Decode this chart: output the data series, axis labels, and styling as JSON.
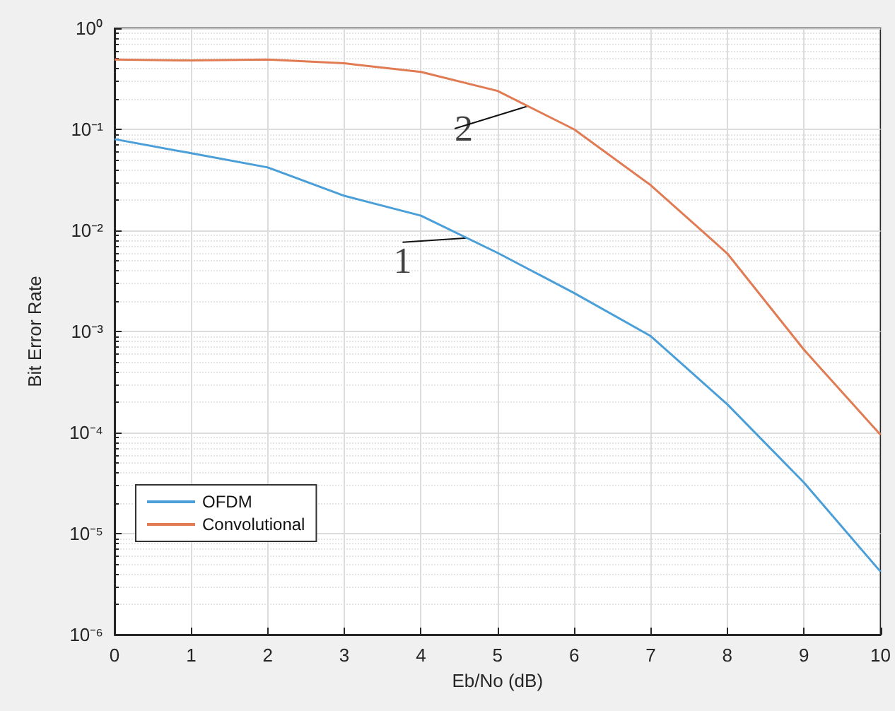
{
  "chart_data": {
    "type": "line",
    "xlabel": "Eb/No (dB)",
    "ylabel": "Bit Error Rate",
    "x": [
      0,
      1,
      2,
      3,
      4,
      5,
      6,
      7,
      8,
      9,
      10
    ],
    "series": [
      {
        "name": "OFDM",
        "color": "#4a9fd8",
        "values": [
          0.08,
          0.058,
          0.042,
          0.022,
          0.014,
          0.006,
          0.0024,
          0.0009,
          0.00019,
          3.2e-05,
          4.2e-06
        ]
      },
      {
        "name": "Convolutional",
        "color": "#e07b54",
        "values": [
          0.49,
          0.48,
          0.49,
          0.45,
          0.37,
          0.24,
          0.1,
          0.028,
          0.0059,
          0.00066,
          9.5e-05
        ]
      }
    ],
    "annotations": [
      {
        "text": "1",
        "x": 4.6,
        "y": 0.0084
      },
      {
        "text": "2",
        "x": 5.4,
        "y": 0.17
      }
    ],
    "log": "y",
    "xlim": [
      0,
      10
    ],
    "xticks": [
      0,
      1,
      2,
      3,
      4,
      5,
      6,
      7,
      8,
      9,
      10
    ],
    "ylim": [
      1e-06,
      1
    ],
    "yticks": [
      {
        "value": 1e-06,
        "label": "10⁻⁶"
      },
      {
        "value": 1e-05,
        "label": "10⁻⁵"
      },
      {
        "value": 0.0001,
        "label": "10⁻⁴"
      },
      {
        "value": 0.001,
        "label": "10⁻³"
      },
      {
        "value": 0.01,
        "label": "10⁻²"
      },
      {
        "value": 0.1,
        "label": "10⁻¹"
      },
      {
        "value": 1,
        "label": "10⁰"
      }
    ],
    "grid": true,
    "legend": "bottom left",
    "line_style": "solid"
  }
}
